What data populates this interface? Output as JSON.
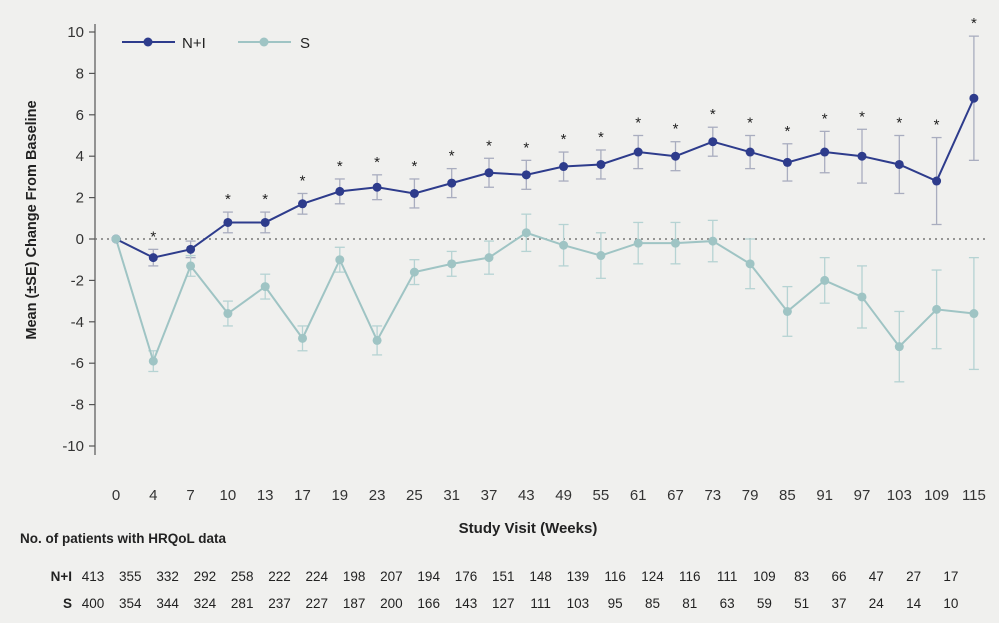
{
  "chart_data": {
    "type": "line",
    "title": "",
    "xlabel": "Study Visit (Weeks)",
    "ylabel": "Mean (±SE) Change From Baseline",
    "ylim": [
      -10,
      10
    ],
    "yticks": [
      10,
      8,
      6,
      4,
      2,
      0,
      -2,
      -4,
      -6,
      -8,
      -10
    ],
    "categories": [
      "0",
      "4",
      "7",
      "10",
      "13",
      "17",
      "19",
      "23",
      "25",
      "31",
      "37",
      "43",
      "49",
      "55",
      "61",
      "67",
      "73",
      "79",
      "85",
      "91",
      "97",
      "103",
      "109",
      "115"
    ],
    "legend": {
      "placement": "top-left"
    },
    "reference_line": 0,
    "series": [
      {
        "name": "N+I",
        "color": "#2e3c8c",
        "values": [
          0,
          -0.9,
          -0.5,
          0.8,
          0.8,
          1.7,
          2.3,
          2.5,
          2.2,
          2.7,
          3.2,
          3.1,
          3.5,
          3.6,
          4.2,
          4.0,
          4.7,
          4.2,
          3.7,
          4.2,
          4.0,
          3.6,
          2.8,
          6.8
        ],
        "se": [
          0,
          0.4,
          0.4,
          0.5,
          0.5,
          0.5,
          0.6,
          0.6,
          0.7,
          0.7,
          0.7,
          0.7,
          0.7,
          0.7,
          0.8,
          0.7,
          0.7,
          0.8,
          0.9,
          1.0,
          1.3,
          1.4,
          2.1,
          3.0
        ]
      },
      {
        "name": "S",
        "color": "#9fc4c4",
        "values": [
          0,
          -5.9,
          -1.3,
          -3.6,
          -2.3,
          -4.8,
          -1.0,
          -4.9,
          -1.6,
          -1.2,
          -0.9,
          0.3,
          -0.3,
          -0.8,
          -0.2,
          -0.2,
          -0.1,
          -1.2,
          -3.5,
          -2.0,
          -2.8,
          -5.2,
          -3.4,
          -3.6
        ],
        "se": [
          0,
          0.5,
          0.5,
          0.6,
          0.6,
          0.6,
          0.6,
          0.7,
          0.6,
          0.6,
          0.8,
          0.9,
          1.0,
          1.1,
          1.0,
          1.0,
          1.0,
          1.2,
          1.2,
          1.1,
          1.5,
          1.7,
          1.9,
          2.7
        ]
      }
    ],
    "significance_marker": "*",
    "significant": [
      false,
      true,
      false,
      true,
      true,
      true,
      true,
      true,
      true,
      true,
      true,
      true,
      true,
      true,
      true,
      true,
      true,
      true,
      true,
      true,
      true,
      true,
      true,
      true
    ]
  },
  "patients_table": {
    "heading": "No. of patients with HRQoL data",
    "rows": [
      {
        "label": "N+I",
        "values": [
          "413",
          "355",
          "332",
          "292",
          "258",
          "222",
          "224",
          "198",
          "207",
          "194",
          "176",
          "151",
          "148",
          "139",
          "116",
          "124",
          "116",
          "111",
          "109",
          "83",
          "66",
          "47",
          "27",
          "17"
        ]
      },
      {
        "label": "S",
        "values": [
          "400",
          "354",
          "344",
          "324",
          "281",
          "237",
          "227",
          "187",
          "200",
          "166",
          "143",
          "127",
          "111",
          "103",
          "95",
          "85",
          "81",
          "63",
          "59",
          "51",
          "37",
          "24",
          "14",
          "10"
        ]
      }
    ]
  }
}
